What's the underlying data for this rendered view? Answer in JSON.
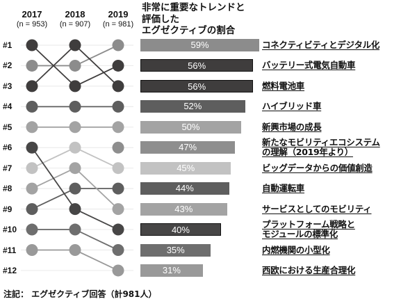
{
  "chart_data": {
    "type": "bar",
    "title": "非常に重要なトレンドと\n評価した\nエグゼクティブの割合",
    "years": [
      {
        "year": "2017",
        "n": "(n = 953)"
      },
      {
        "year": "2018",
        "n": "(n = 907)"
      },
      {
        "year": "2019",
        "n": "(n = 981)"
      }
    ],
    "rank_labels": [
      "#1",
      "#2",
      "#3",
      "#4",
      "#5",
      "#6",
      "#7",
      "#8",
      "#9",
      "#10",
      "#11",
      "#12"
    ],
    "categories": [
      "コネクティビティとデジタル化",
      "バッテリー式電気自動車",
      "燃料電池車",
      "ハイブリッド車",
      "新興市場の成長",
      "新たなモビリティエコシステム\nの理解（2019年より）",
      "ビッグデータからの価値創造",
      "自動運転車",
      "サービスとしてのモビリティ",
      "プラットフォーム戦略と\nモジュールの標準化",
      "内燃機関の小型化",
      "西欧における生産合理化"
    ],
    "values": [
      59,
      56,
      56,
      52,
      50,
      47,
      45,
      44,
      43,
      40,
      35,
      31
    ],
    "value_labels": [
      "59%",
      "56%",
      "56%",
      "52%",
      "50%",
      "47%",
      "45%",
      "44%",
      "43%",
      "40%",
      "35%",
      "31%"
    ],
    "unit": "%",
    "ranks": [
      {
        "r2017": 2,
        "r2018": 2,
        "r2019": 1
      },
      {
        "r2017": 1,
        "r2018": 3,
        "r2019": 2
      },
      {
        "r2017": 3,
        "r2018": 1,
        "r2019": 3
      },
      {
        "r2017": 4,
        "r2018": 4,
        "r2019": 4
      },
      {
        "r2017": 5,
        "r2018": 5,
        "r2019": 5
      },
      {
        "r2017": null,
        "r2018": null,
        "r2019": 6
      },
      {
        "r2017": 7,
        "r2018": 6,
        "r2019": 7
      },
      {
        "r2017": 9,
        "r2018": 8,
        "r2019": 8
      },
      {
        "r2017": 8,
        "r2018": 7,
        "r2019": 9
      },
      {
        "r2017": 6,
        "r2018": 9,
        "r2019": 10
      },
      {
        "r2017": 10,
        "r2018": 10,
        "r2019": 11
      },
      {
        "r2017": 11,
        "r2018": 11,
        "r2019": 12
      }
    ],
    "colors": [
      "#8c8c8c",
      "#3f3d3d",
      "#3f3d3d",
      "#5e5e5e",
      "#a3a3a3",
      "#8e8e8e",
      "#c2c2c2",
      "#5e5e5e",
      "#a3a3a3",
      "#474646",
      "#6e6e6e",
      "#999999"
    ],
    "xlim": [
      0,
      59
    ]
  },
  "footnote": "注記： エグゼクティブ回答（計981人）"
}
